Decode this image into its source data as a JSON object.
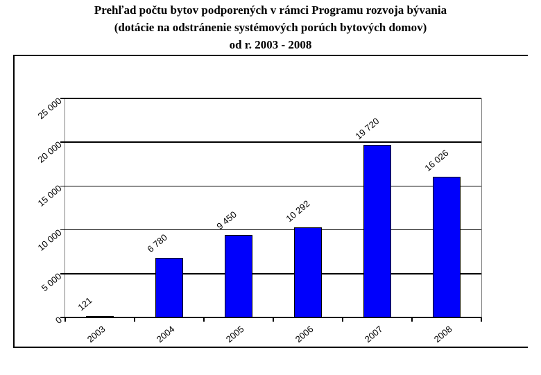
{
  "title": {
    "line1": "Prehľad počtu bytov podporených v rámci Programu rozvoja bývania",
    "line2": "(dotácie na odstránenie systémových porúch bytových domov)",
    "line3": "od r. 2003 - 2008"
  },
  "colors": {
    "bar_fill": "#0000FC",
    "bar_border": "#000000",
    "gridline": "#000000",
    "plot_edge": "#808080",
    "text": "#000000",
    "background": "#FFFFFF"
  },
  "chart_data": {
    "type": "bar",
    "title": "Prehľad počtu bytov podporených v rámci Programu rozvoja bývania (dotácie na odstránenie systémových porúch bytových domov) od r. 2003 - 2008",
    "categories": [
      "2003",
      "2004",
      "2005",
      "2006",
      "2007",
      "2008"
    ],
    "values": [
      121,
      6780,
      9450,
      10292,
      19720,
      16026
    ],
    "bar_labels": [
      "121",
      "6 780",
      "9 450",
      "10 292",
      "19 720",
      "16 026"
    ],
    "xlabel": "",
    "ylabel": "",
    "ylim": [
      0,
      25000
    ],
    "ytick_values": [
      0,
      5000,
      10000,
      15000,
      20000,
      25000
    ],
    "ytick_labels": [
      "0",
      "5 000",
      "10 000",
      "15 000",
      "20 000",
      "25 000"
    ],
    "grid": true,
    "legend": "none",
    "tick_label_rotation_deg": -40
  }
}
